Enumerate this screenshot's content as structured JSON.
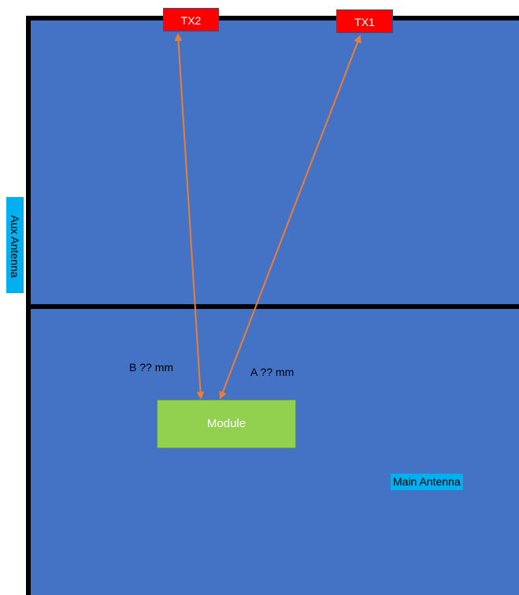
{
  "transmitters": {
    "tx1_label": "TX1",
    "tx2_label": "TX2"
  },
  "module": {
    "label": "Module"
  },
  "distances": {
    "a_label": "A ?? mm",
    "b_label": "B ?? mm"
  },
  "antennas": {
    "main_label": "Main Antenna",
    "aux_label": "Aux Antenna"
  },
  "colors": {
    "board_fill": "#4472C4",
    "board_border": "#000000",
    "tx_fill": "#FF0000",
    "module_fill": "#92D050",
    "arrow": "#ED7D31",
    "antenna_label_fill": "#00B0F0"
  }
}
